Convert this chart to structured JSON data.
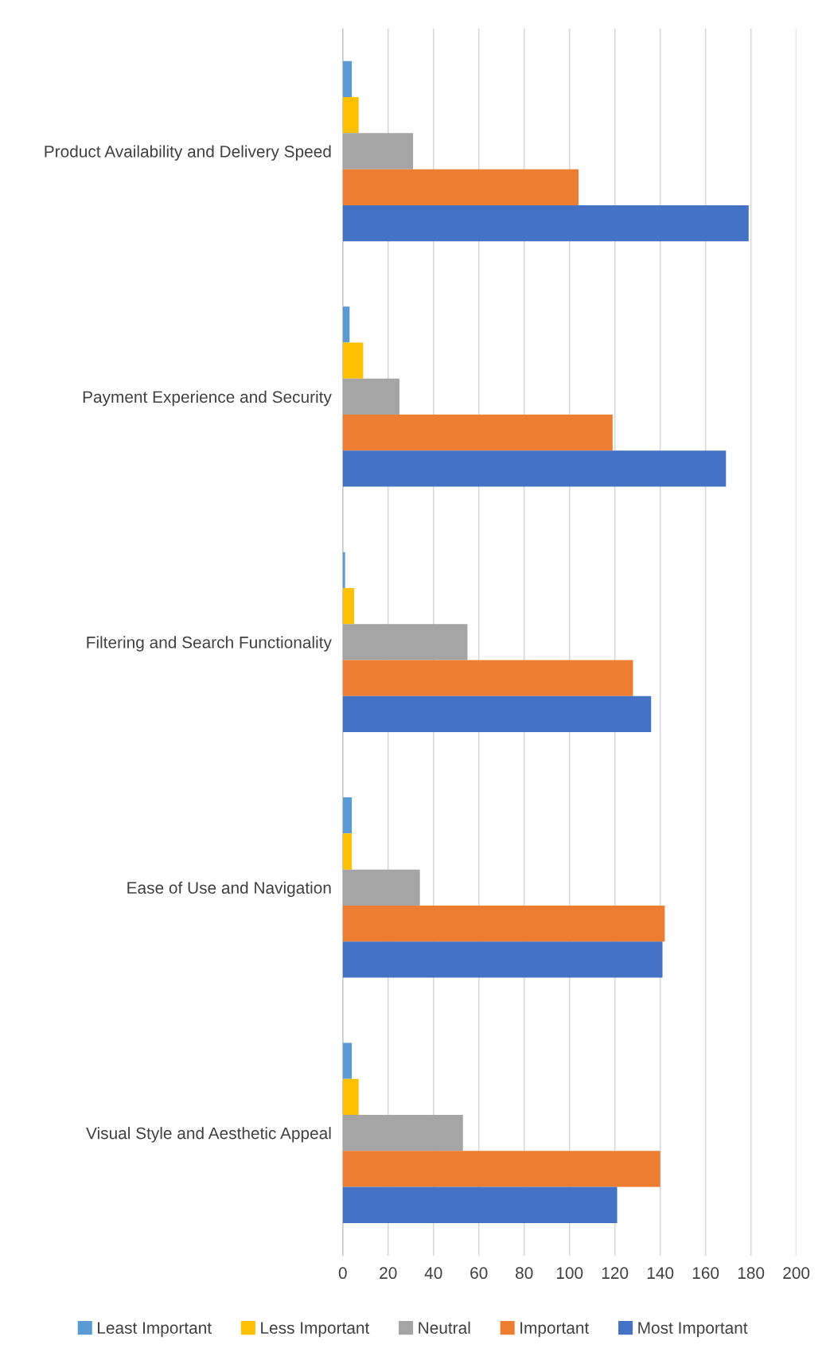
{
  "chart_data": {
    "type": "bar",
    "orientation": "horizontal",
    "categories": [
      "Product Availability and Delivery Speed",
      "Payment Experience and Security",
      "Filtering and Search Functionality",
      "Ease of Use and Navigation",
      "Visual Style and Aesthetic Appeal"
    ],
    "series": [
      {
        "name": "Least Important",
        "color": "#5b9bd5",
        "values": [
          4,
          3,
          1,
          4,
          4
        ]
      },
      {
        "name": "Less Important",
        "color": "#ffc000",
        "values": [
          7,
          9,
          5,
          4,
          7
        ]
      },
      {
        "name": "Neutral",
        "color": "#a5a5a5",
        "values": [
          31,
          25,
          55,
          34,
          53
        ]
      },
      {
        "name": "Important",
        "color": "#ed7d31",
        "values": [
          104,
          119,
          128,
          142,
          140
        ]
      },
      {
        "name": "Most Important",
        "color": "#4472c4",
        "values": [
          179,
          169,
          136,
          141,
          121
        ]
      }
    ],
    "xlim": [
      0,
      200
    ],
    "xticks": [
      0,
      20,
      40,
      60,
      80,
      100,
      120,
      140,
      160,
      180,
      200
    ],
    "grid": "x",
    "legend": "bottom"
  }
}
